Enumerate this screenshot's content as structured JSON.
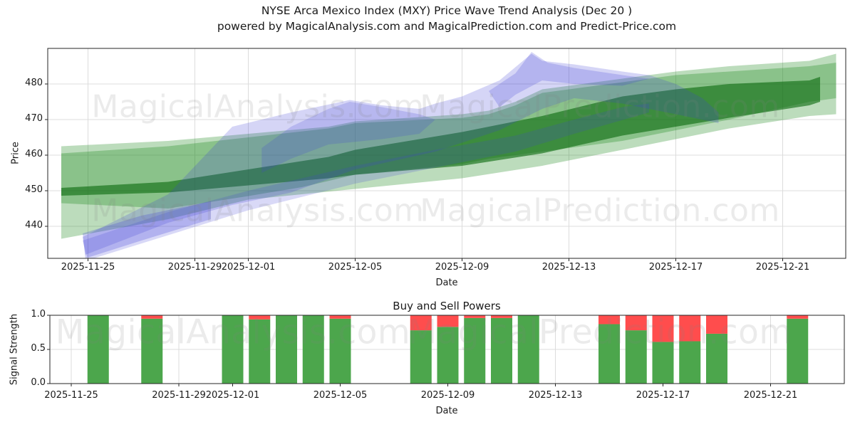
{
  "header": {
    "line1": "NYSE Arca Mexico Index (MXY) Price Wave Trend Analysis (Dec 20 )",
    "line2": "powered by MagicalAnalysis.com and MagicalPrediction.com and Predict-Price.com"
  },
  "watermarks": {
    "analysis": "MagicalAnalysis.com",
    "prediction": "MagicalPrediction.com"
  },
  "chart_data": [
    {
      "type": "area",
      "title": "NYSE Arca Mexico Index (MXY) Price Wave Trend Analysis (Dec 20 )",
      "xlabel": "Date",
      "ylabel": "Price",
      "ylim": [
        431,
        490
      ],
      "grid": true,
      "x_ticks": [
        "2025-11-25",
        "2025-11-29",
        "2025-12-01",
        "2025-12-05",
        "2025-12-09",
        "2025-12-13",
        "2025-12-17",
        "2025-12-21"
      ],
      "y_ticks": [
        440,
        450,
        460,
        470,
        480
      ],
      "day_zero": "2025-11-24",
      "colors": {
        "trend_green": "#228B22",
        "trend_green_core": "#0d6b10",
        "wave_blue": "#4040d8"
      },
      "bands": [
        {
          "name": "green-trend-outer",
          "color": "#228B22",
          "opacity": 0.3,
          "top": [
            [
              0,
              462.5
            ],
            [
              4,
              464
            ],
            [
              7,
              466
            ],
            [
              10,
              468
            ],
            [
              11,
              469.5
            ],
            [
              15,
              471.5
            ],
            [
              16,
              472.5
            ],
            [
              17,
              475
            ],
            [
              18,
              478.5
            ],
            [
              21,
              481.5
            ],
            [
              23,
              483.5
            ],
            [
              25,
              485
            ],
            [
              28,
              486.5
            ],
            [
              29,
              488.5
            ]
          ],
          "bottom": [
            [
              0,
              436.5
            ],
            [
              4,
              442
            ],
            [
              7,
              447.5
            ],
            [
              9,
              449
            ],
            [
              11,
              450.5
            ],
            [
              15,
              453.5
            ],
            [
              18,
              457
            ],
            [
              21,
              461.5
            ],
            [
              23,
              464.5
            ],
            [
              25,
              467.5
            ],
            [
              28,
              471
            ],
            [
              29,
              471.5
            ]
          ]
        },
        {
          "name": "green-trend-inner",
          "color": "#228B22",
          "opacity": 0.32,
          "top": [
            [
              0,
              460.5
            ],
            [
              4,
              462.5
            ],
            [
              7,
              465
            ],
            [
              10,
              467.5
            ],
            [
              11,
              469
            ],
            [
              15,
              470.5
            ],
            [
              16,
              471.5
            ],
            [
              17,
              474
            ],
            [
              18,
              477.5
            ],
            [
              21,
              480.5
            ],
            [
              23,
              482.5
            ],
            [
              28,
              485
            ],
            [
              29,
              486
            ]
          ],
          "bottom": [
            [
              0,
              446.5
            ],
            [
              4,
              445
            ],
            [
              7,
              448.5
            ],
            [
              9,
              451
            ],
            [
              11,
              454.5
            ],
            [
              15,
              457.5
            ],
            [
              16,
              459
            ],
            [
              18,
              461
            ],
            [
              21,
              464
            ],
            [
              23,
              467
            ],
            [
              25,
              470
            ],
            [
              28,
              475
            ],
            [
              29,
              476
            ]
          ]
        },
        {
          "name": "green-trend-core",
          "color": "#0d6b10",
          "opacity": 0.62,
          "top": [
            [
              0,
              450.8
            ],
            [
              4,
              452.5
            ],
            [
              7,
              456
            ],
            [
              10,
              459.5
            ],
            [
              11,
              461.5
            ],
            [
              15,
              466.5
            ],
            [
              18,
              471
            ],
            [
              21,
              476.5
            ],
            [
              23,
              478.5
            ],
            [
              25,
              480
            ],
            [
              28,
              481
            ],
            [
              28.4,
              482
            ]
          ],
          "bottom": [
            [
              0,
              448.6
            ],
            [
              4,
              449.5
            ],
            [
              7,
              451.5
            ],
            [
              10,
              453.5
            ],
            [
              11,
              454.5
            ],
            [
              15,
              457
            ],
            [
              18,
              460.5
            ],
            [
              21,
              465.5
            ],
            [
              23,
              468
            ],
            [
              25,
              470.5
            ],
            [
              28,
              474
            ],
            [
              28.4,
              475
            ]
          ]
        },
        {
          "name": "blue-wave-main",
          "color": "#4040d8",
          "opacity": 0.22,
          "top": [
            [
              0.8,
              437
            ],
            [
              4,
              449
            ],
            [
              6.4,
              468
            ],
            [
              8.6,
              472
            ],
            [
              10.8,
              475.5
            ],
            [
              12,
              474
            ],
            [
              13.4,
              473
            ],
            [
              14,
              474.5
            ],
            [
              15,
              476.5
            ],
            [
              16.4,
              481
            ],
            [
              17.6,
              488.5
            ],
            [
              18,
              486.5
            ],
            [
              19.2,
              485.5
            ],
            [
              21,
              483.5
            ],
            [
              22,
              482.5
            ],
            [
              23,
              480
            ],
            [
              24,
              476
            ],
            [
              24.6,
              472
            ]
          ],
          "bottom": [
            [
              0.9,
              432
            ],
            [
              4,
              441
            ],
            [
              6.4,
              446
            ],
            [
              8.6,
              449.5
            ],
            [
              11,
              456
            ],
            [
              14,
              461
            ],
            [
              15,
              463.5
            ],
            [
              16.4,
              467
            ],
            [
              18,
              473
            ],
            [
              19.2,
              476
            ],
            [
              21,
              474.5
            ],
            [
              22,
              473
            ],
            [
              23,
              471.5
            ],
            [
              24.6,
              469
            ]
          ]
        },
        {
          "name": "blue-wave-lower",
          "color": "#4040d8",
          "opacity": 0.2,
          "top": [
            [
              0.8,
              436
            ],
            [
              4,
              444
            ],
            [
              7,
              450
            ],
            [
              11,
              457
            ],
            [
              14,
              461.5
            ],
            [
              17,
              465.5
            ],
            [
              19.2,
              470
            ],
            [
              21,
              473.5
            ],
            [
              22,
              474.5
            ]
          ],
          "bottom": [
            [
              1,
              430.5
            ],
            [
              4,
              437.5
            ],
            [
              7,
              444.5
            ],
            [
              11,
              452
            ],
            [
              14,
              456.5
            ],
            [
              17,
              461
            ],
            [
              19.2,
              466
            ],
            [
              22,
              472
            ]
          ]
        },
        {
          "name": "blue-wave-origin",
          "color": "#4040d8",
          "opacity": 0.25,
          "points": [
            [
              0.8,
              438
            ],
            [
              3,
              443
            ],
            [
              5.6,
              447
            ],
            [
              5.6,
              442
            ],
            [
              3,
              436
            ],
            [
              0.9,
              431
            ]
          ]
        },
        {
          "name": "blue-wave-spike",
          "color": "#4040d8",
          "opacity": 0.22,
          "points": [
            [
              16,
              478
            ],
            [
              17,
              483
            ],
            [
              17.6,
              489
            ],
            [
              18.2,
              486
            ],
            [
              19.2,
              484.5
            ],
            [
              21,
              482.5
            ],
            [
              22,
              481.5
            ],
            [
              21,
              479.5
            ],
            [
              19.2,
              480
            ],
            [
              18,
              481
            ],
            [
              17,
              477
            ],
            [
              16.4,
              473.5
            ]
          ]
        },
        {
          "name": "blue-wave-midpeak",
          "color": "#4040d8",
          "opacity": 0.2,
          "points": [
            [
              7.5,
              462
            ],
            [
              8.6,
              468
            ],
            [
              10,
              473
            ],
            [
              10.8,
              475
            ],
            [
              12,
              473.5
            ],
            [
              13.4,
              471.5
            ],
            [
              14,
              470
            ],
            [
              13.4,
              466
            ],
            [
              12,
              464.5
            ],
            [
              10,
              463
            ],
            [
              8.6,
              459
            ],
            [
              7.5,
              455
            ]
          ]
        }
      ]
    },
    {
      "type": "bar",
      "title": "Buy and Sell Powers",
      "xlabel": "Date",
      "ylabel": "Signal Strength",
      "ylim": [
        0.0,
        1.0
      ],
      "grid": true,
      "x_ticks": [
        "2025-11-25",
        "2025-11-29",
        "2025-12-01",
        "2025-12-05",
        "2025-12-09",
        "2025-12-13",
        "2025-12-17",
        "2025-12-21"
      ],
      "y_ticks": [
        "0.0",
        "0.5",
        "1.0"
      ],
      "series": [
        {
          "name": "Buy",
          "color": "#4ca64c"
        },
        {
          "name": "Sell",
          "color": "#ff4d4d"
        }
      ],
      "bars": [
        {
          "date": "2025-11-26",
          "buy": 1.0,
          "sell": 0.0
        },
        {
          "date": "2025-11-28",
          "buy": 0.95,
          "sell": 0.05
        },
        {
          "date": "2025-12-01",
          "buy": 1.0,
          "sell": 0.0
        },
        {
          "date": "2025-12-02",
          "buy": 0.94,
          "sell": 0.06
        },
        {
          "date": "2025-12-03",
          "buy": 1.0,
          "sell": 0.0
        },
        {
          "date": "2025-12-04",
          "buy": 1.0,
          "sell": 0.0
        },
        {
          "date": "2025-12-05",
          "buy": 0.95,
          "sell": 0.05
        },
        {
          "date": "2025-12-08",
          "buy": 0.78,
          "sell": 0.22
        },
        {
          "date": "2025-12-09",
          "buy": 0.83,
          "sell": 0.17
        },
        {
          "date": "2025-12-10",
          "buy": 0.96,
          "sell": 0.04
        },
        {
          "date": "2025-12-11",
          "buy": 0.96,
          "sell": 0.04
        },
        {
          "date": "2025-12-12",
          "buy": 1.0,
          "sell": 0.0
        },
        {
          "date": "2025-12-15",
          "buy": 0.87,
          "sell": 0.13
        },
        {
          "date": "2025-12-16",
          "buy": 0.78,
          "sell": 0.22
        },
        {
          "date": "2025-12-17",
          "buy": 0.61,
          "sell": 0.39
        },
        {
          "date": "2025-12-18",
          "buy": 0.62,
          "sell": 0.38
        },
        {
          "date": "2025-12-19",
          "buy": 0.73,
          "sell": 0.27
        },
        {
          "date": "2025-12-22",
          "buy": 0.95,
          "sell": 0.05
        }
      ]
    }
  ]
}
